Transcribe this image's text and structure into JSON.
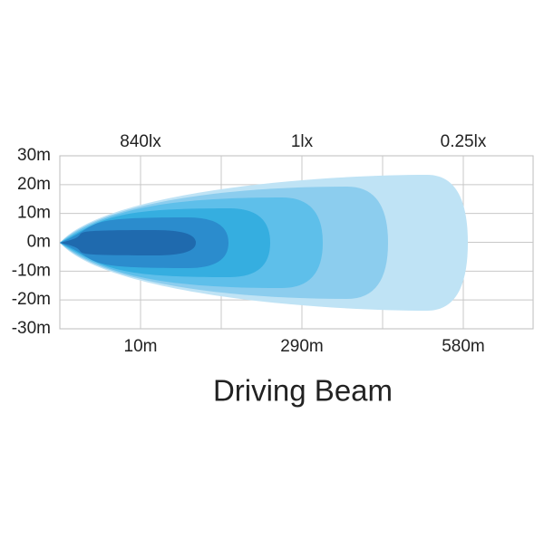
{
  "diagram": {
    "title": "Driving Beam",
    "y_labels": [
      "30m",
      "20m",
      "10m",
      "0m",
      "-10m",
      "-20m",
      "-30m"
    ],
    "top_labels": [
      "840lx",
      "1lx",
      "0.25lx"
    ],
    "bottom_labels": [
      "10m",
      "290m",
      "580m"
    ]
  }
}
